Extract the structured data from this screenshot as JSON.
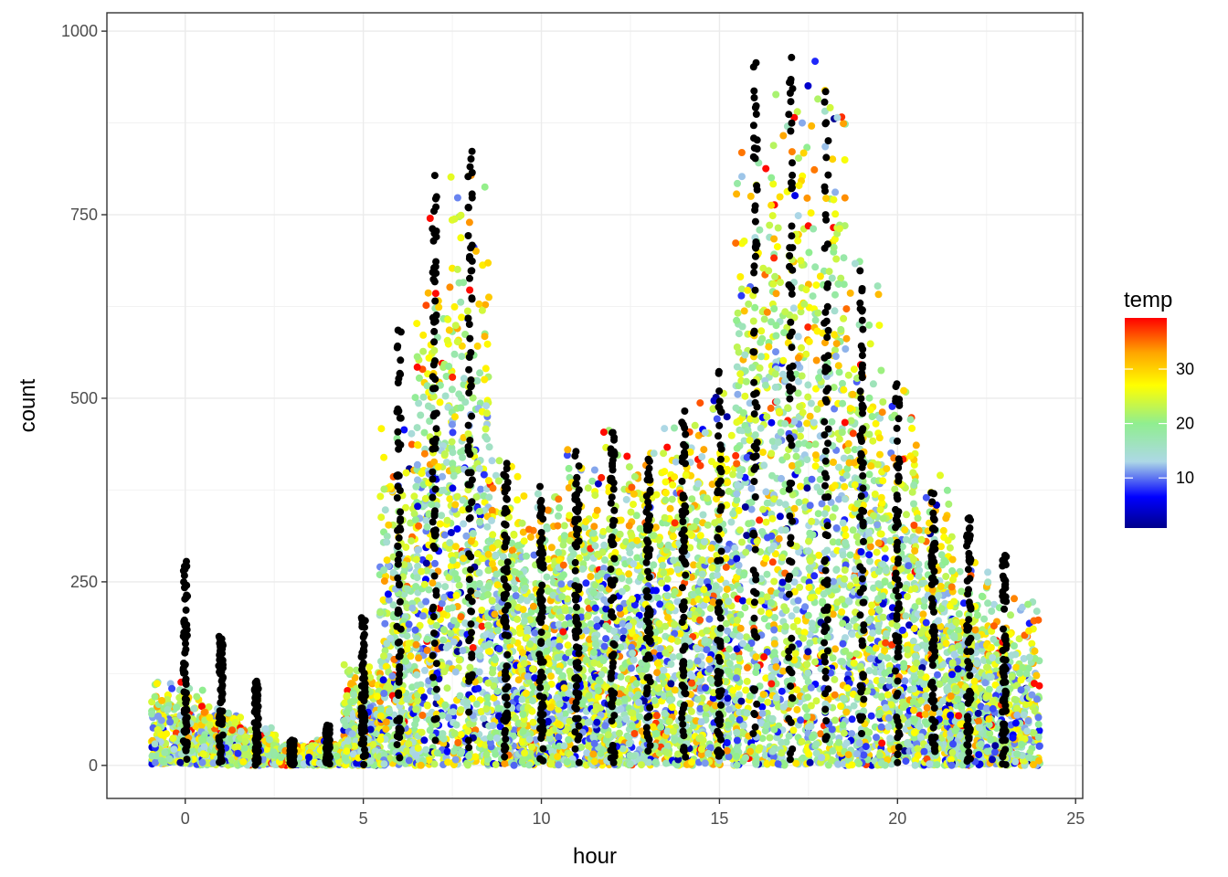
{
  "chart_data": {
    "type": "scatter",
    "title": "",
    "xlabel": "hour",
    "ylabel": "count",
    "xlim": [
      -2.2,
      25.2
    ],
    "ylim": [
      -45,
      1025
    ],
    "x_ticks": [
      0,
      5,
      10,
      15,
      20,
      25
    ],
    "y_ticks": [
      0,
      250,
      500,
      750,
      1000
    ],
    "x_tick_labels": [
      "0",
      "5",
      "10",
      "15",
      "20",
      "25"
    ],
    "y_tick_labels": [
      "0",
      "250",
      "500",
      "750",
      "1000"
    ],
    "grid": true,
    "color_by": "temp",
    "legend": {
      "title": "temp",
      "placement": "right",
      "range": [
        0.8,
        39.4
      ],
      "ticks": [
        10,
        20,
        30
      ],
      "tick_labels": [
        "10",
        "20",
        "30"
      ],
      "gradient": [
        {
          "value": 0.8,
          "color": "#00008B"
        },
        {
          "value": 6.5,
          "color": "#0000FF"
        },
        {
          "value": 13,
          "color": "#ADD8E6"
        },
        {
          "value": 20,
          "color": "#90EE90"
        },
        {
          "value": 27,
          "color": "#FFFF00"
        },
        {
          "value": 33,
          "color": "#FFA500"
        },
        {
          "value": 39.4,
          "color": "#FF0000"
        }
      ]
    },
    "missing_temp_color": "#000000",
    "point_model": {
      "description_note": "",
      "hourly_count_profile": [
        {
          "hour": 0,
          "typical_max": 100,
          "outlier_max": 285
        },
        {
          "hour": 1,
          "typical_max": 70,
          "outlier_max": 178
        },
        {
          "hour": 2,
          "typical_max": 45,
          "outlier_max": 115
        },
        {
          "hour": 3,
          "typical_max": 25,
          "outlier_max": 35
        },
        {
          "hour": 4,
          "typical_max": 30,
          "outlier_max": 55
        },
        {
          "hour": 5,
          "typical_max": 120,
          "outlier_max": 205
        },
        {
          "hour": 6,
          "typical_max": 400,
          "outlier_max": 595
        },
        {
          "hour": 7,
          "typical_max": 650,
          "outlier_max": 840
        },
        {
          "hour": 8,
          "typical_max": 700,
          "outlier_max": 840
        },
        {
          "hour": 9,
          "typical_max": 380,
          "outlier_max": 415
        },
        {
          "hour": 10,
          "typical_max": 330,
          "outlier_max": 380
        },
        {
          "hour": 11,
          "typical_max": 380,
          "outlier_max": 440
        },
        {
          "hour": 12,
          "typical_max": 400,
          "outlier_max": 470
        },
        {
          "hour": 13,
          "typical_max": 400,
          "outlier_max": 425
        },
        {
          "hour": 14,
          "typical_max": 420,
          "outlier_max": 490
        },
        {
          "hour": 15,
          "typical_max": 450,
          "outlier_max": 565
        },
        {
          "hour": 16,
          "typical_max": 750,
          "outlier_max": 970
        },
        {
          "hour": 17,
          "typical_max": 850,
          "outlier_max": 970
        },
        {
          "hour": 18,
          "typical_max": 850,
          "outlier_max": 980
        },
        {
          "hour": 19,
          "typical_max": 600,
          "outlier_max": 690
        },
        {
          "hour": 20,
          "typical_max": 450,
          "outlier_max": 520
        },
        {
          "hour": 21,
          "typical_max": 350,
          "outlier_max": 395
        },
        {
          "hour": 22,
          "typical_max": 250,
          "outlier_max": 350
        },
        {
          "hour": 23,
          "typical_max": 200,
          "outlier_max": 290
        }
      ]
    }
  }
}
